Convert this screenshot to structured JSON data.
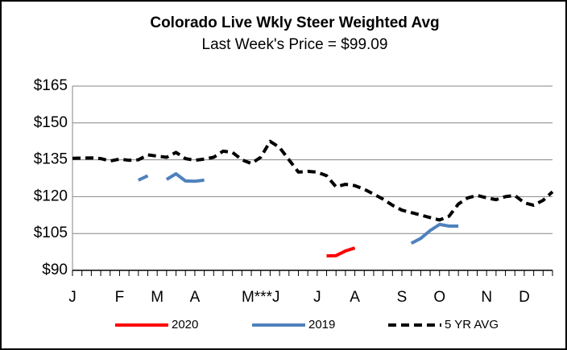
{
  "chart_data": {
    "type": "line",
    "title": "Colorado Live Wkly Steer Weighted Avg",
    "subtitle": "Last Week's Price = $99.09",
    "categories": [
      "J",
      null,
      null,
      null,
      null,
      "F",
      null,
      null,
      null,
      "M",
      null,
      null,
      null,
      "A",
      null,
      null,
      null,
      null,
      null,
      null,
      "M***J",
      null,
      null,
      null,
      null,
      null,
      "J",
      null,
      null,
      null,
      "A",
      null,
      null,
      null,
      null,
      "S",
      null,
      null,
      null,
      "O",
      null,
      null,
      null,
      null,
      "N",
      null,
      null,
      null,
      "D",
      null,
      null,
      null
    ],
    "series": [
      {
        "name": "2020",
        "color": "#ff0000",
        "dashed": false,
        "values": [
          null,
          null,
          null,
          null,
          null,
          null,
          null,
          null,
          null,
          null,
          null,
          null,
          null,
          null,
          null,
          null,
          null,
          null,
          null,
          null,
          null,
          null,
          null,
          null,
          null,
          null,
          null,
          95.9,
          96,
          97.9,
          99.09,
          null,
          null,
          null,
          null,
          null,
          null,
          null,
          null,
          null,
          null,
          null,
          null,
          null,
          null,
          null,
          null,
          null,
          null,
          null,
          null,
          null
        ]
      },
      {
        "name": "2019",
        "color": "#4f81bd",
        "dashed": false,
        "values": [
          null,
          null,
          null,
          null,
          null,
          null,
          null,
          126.7,
          128.5,
          null,
          127,
          129.3,
          126.4,
          126.3,
          126.7,
          null,
          null,
          null,
          null,
          null,
          null,
          null,
          null,
          null,
          null,
          null,
          null,
          null,
          null,
          null,
          null,
          null,
          null,
          null,
          null,
          null,
          101,
          103,
          106.2,
          108.7,
          108,
          108,
          null,
          null,
          null,
          null,
          null,
          null,
          null,
          null,
          null,
          null
        ]
      },
      {
        "name": "5 YR AVG",
        "color": "#000000",
        "dashed": true,
        "values": [
          135.6,
          135.7,
          135.8,
          135.5,
          134.5,
          135.3,
          134.8,
          135,
          137,
          136.5,
          136,
          138,
          135.5,
          134.8,
          135.3,
          136,
          138.5,
          138,
          135,
          133.5,
          136,
          142.5,
          140,
          135,
          130,
          130.3,
          130,
          128.5,
          124,
          125,
          124.5,
          123,
          121,
          119,
          116.5,
          114.5,
          113.5,
          112.5,
          111.5,
          110.5,
          112,
          117,
          119.5,
          120.5,
          119.5,
          118.8,
          120,
          120.5,
          117.5,
          116.5,
          118.5,
          122
        ]
      }
    ],
    "ylim": [
      90,
      165
    ],
    "yticks": [
      {
        "value": 90,
        "label": "$90"
      },
      {
        "value": 105,
        "label": "$105"
      },
      {
        "value": 120,
        "label": "$120"
      },
      {
        "value": 135,
        "label": "$135"
      },
      {
        "value": 150,
        "label": "$150"
      },
      {
        "value": 165,
        "label": "$165"
      }
    ],
    "grid": true
  }
}
